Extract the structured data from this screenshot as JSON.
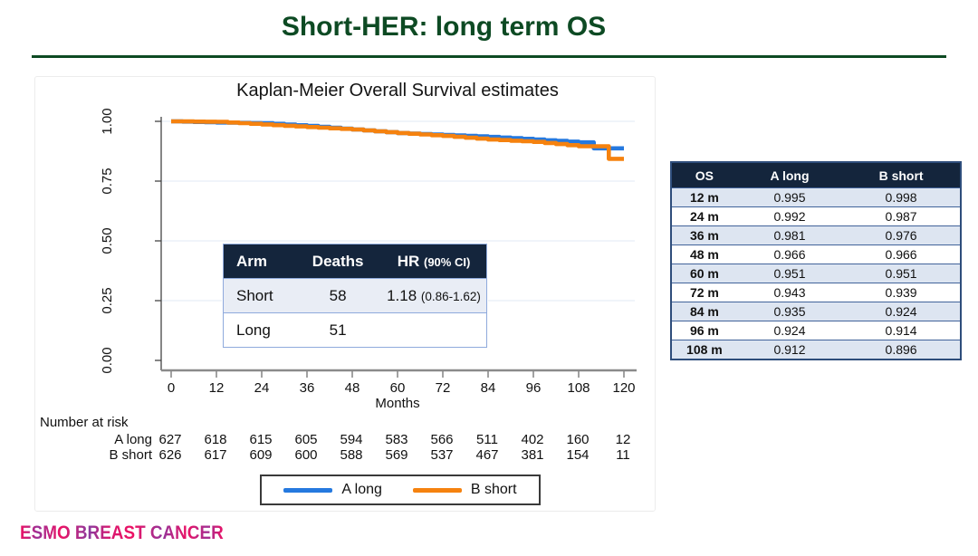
{
  "colors": {
    "accent_green": "#0d4a23",
    "curve_blue": "#2579df",
    "curve_orange": "#f5820f",
    "table_header_navy": "#14253c",
    "table_row_light": "#dde5f1",
    "table_border_blue": "#2e4d7b",
    "inset_border_blue": "#8faadc",
    "grid_line": "#e7eef7",
    "axis_gray": "#8a8a8a",
    "logo_pink": "#e0146b",
    "logo_purple": "#8b3a9e"
  },
  "slide": {
    "title": "Short-HER: long term OS",
    "logo_text": "ESMO BREAST CANCER"
  },
  "chart_data": {
    "type": "line",
    "subtype": "kaplan-meier-step",
    "title": "Kaplan-Meier Overall Survival estimates",
    "xlabel": "Months",
    "ylabel": "",
    "xlim": [
      0,
      120
    ],
    "ylim": [
      0.0,
      1.0
    ],
    "x_ticks": [
      0,
      12,
      24,
      36,
      48,
      60,
      72,
      84,
      96,
      108,
      120
    ],
    "y_ticks": [
      "1.00",
      "0.75",
      "0.50",
      "0.25",
      "0.00"
    ],
    "grid": "horizontal",
    "legend_position": "bottom",
    "series": [
      {
        "name": "A long",
        "color": "#2579df",
        "x": [
          0,
          12,
          24,
          36,
          48,
          60,
          72,
          84,
          96,
          108,
          111,
          112,
          120
        ],
        "y": [
          1.0,
          0.995,
          0.992,
          0.981,
          0.966,
          0.951,
          0.943,
          0.935,
          0.924,
          0.912,
          0.912,
          0.887,
          0.887
        ]
      },
      {
        "name": "B short",
        "color": "#f5820f",
        "x": [
          0,
          12,
          24,
          36,
          48,
          60,
          72,
          84,
          96,
          108,
          115,
          116,
          120
        ],
        "y": [
          1.0,
          0.998,
          0.987,
          0.976,
          0.966,
          0.951,
          0.939,
          0.924,
          0.914,
          0.896,
          0.896,
          0.843,
          0.843
        ]
      }
    ]
  },
  "inset_table": {
    "header": {
      "arm": "Arm",
      "deaths": "Deaths",
      "hr": "HR",
      "hr_sub": "(90% CI)"
    },
    "rows": [
      {
        "arm": "Short",
        "deaths": "58",
        "hr": "1.18",
        "hr_sub": "(0.86-1.62)"
      },
      {
        "arm": "Long",
        "deaths": "51",
        "hr": "",
        "hr_sub": ""
      }
    ]
  },
  "os_table": {
    "headers": [
      "OS",
      "A long",
      "B short"
    ],
    "rows": [
      [
        "12 m",
        "0.995",
        "0.998"
      ],
      [
        "24 m",
        "0.992",
        "0.987"
      ],
      [
        "36 m",
        "0.981",
        "0.976"
      ],
      [
        "48 m",
        "0.966",
        "0.966"
      ],
      [
        "60 m",
        "0.951",
        "0.951"
      ],
      [
        "72 m",
        "0.943",
        "0.939"
      ],
      [
        "84 m",
        "0.935",
        "0.924"
      ],
      [
        "96 m",
        "0.924",
        "0.914"
      ],
      [
        "108 m",
        "0.912",
        "0.896"
      ]
    ]
  },
  "number_at_risk": {
    "label": "Number at risk",
    "rows": [
      {
        "name": "A long",
        "values": [
          "627",
          "618",
          "615",
          "605",
          "594",
          "583",
          "566",
          "511",
          "402",
          "160",
          "12"
        ]
      },
      {
        "name": "B short",
        "values": [
          "626",
          "617",
          "609",
          "600",
          "588",
          "569",
          "537",
          "467",
          "381",
          "154",
          "11"
        ]
      }
    ]
  },
  "legend": {
    "items": [
      {
        "label": "A long",
        "color": "#2579df"
      },
      {
        "label": "B short",
        "color": "#f5820f"
      }
    ]
  }
}
